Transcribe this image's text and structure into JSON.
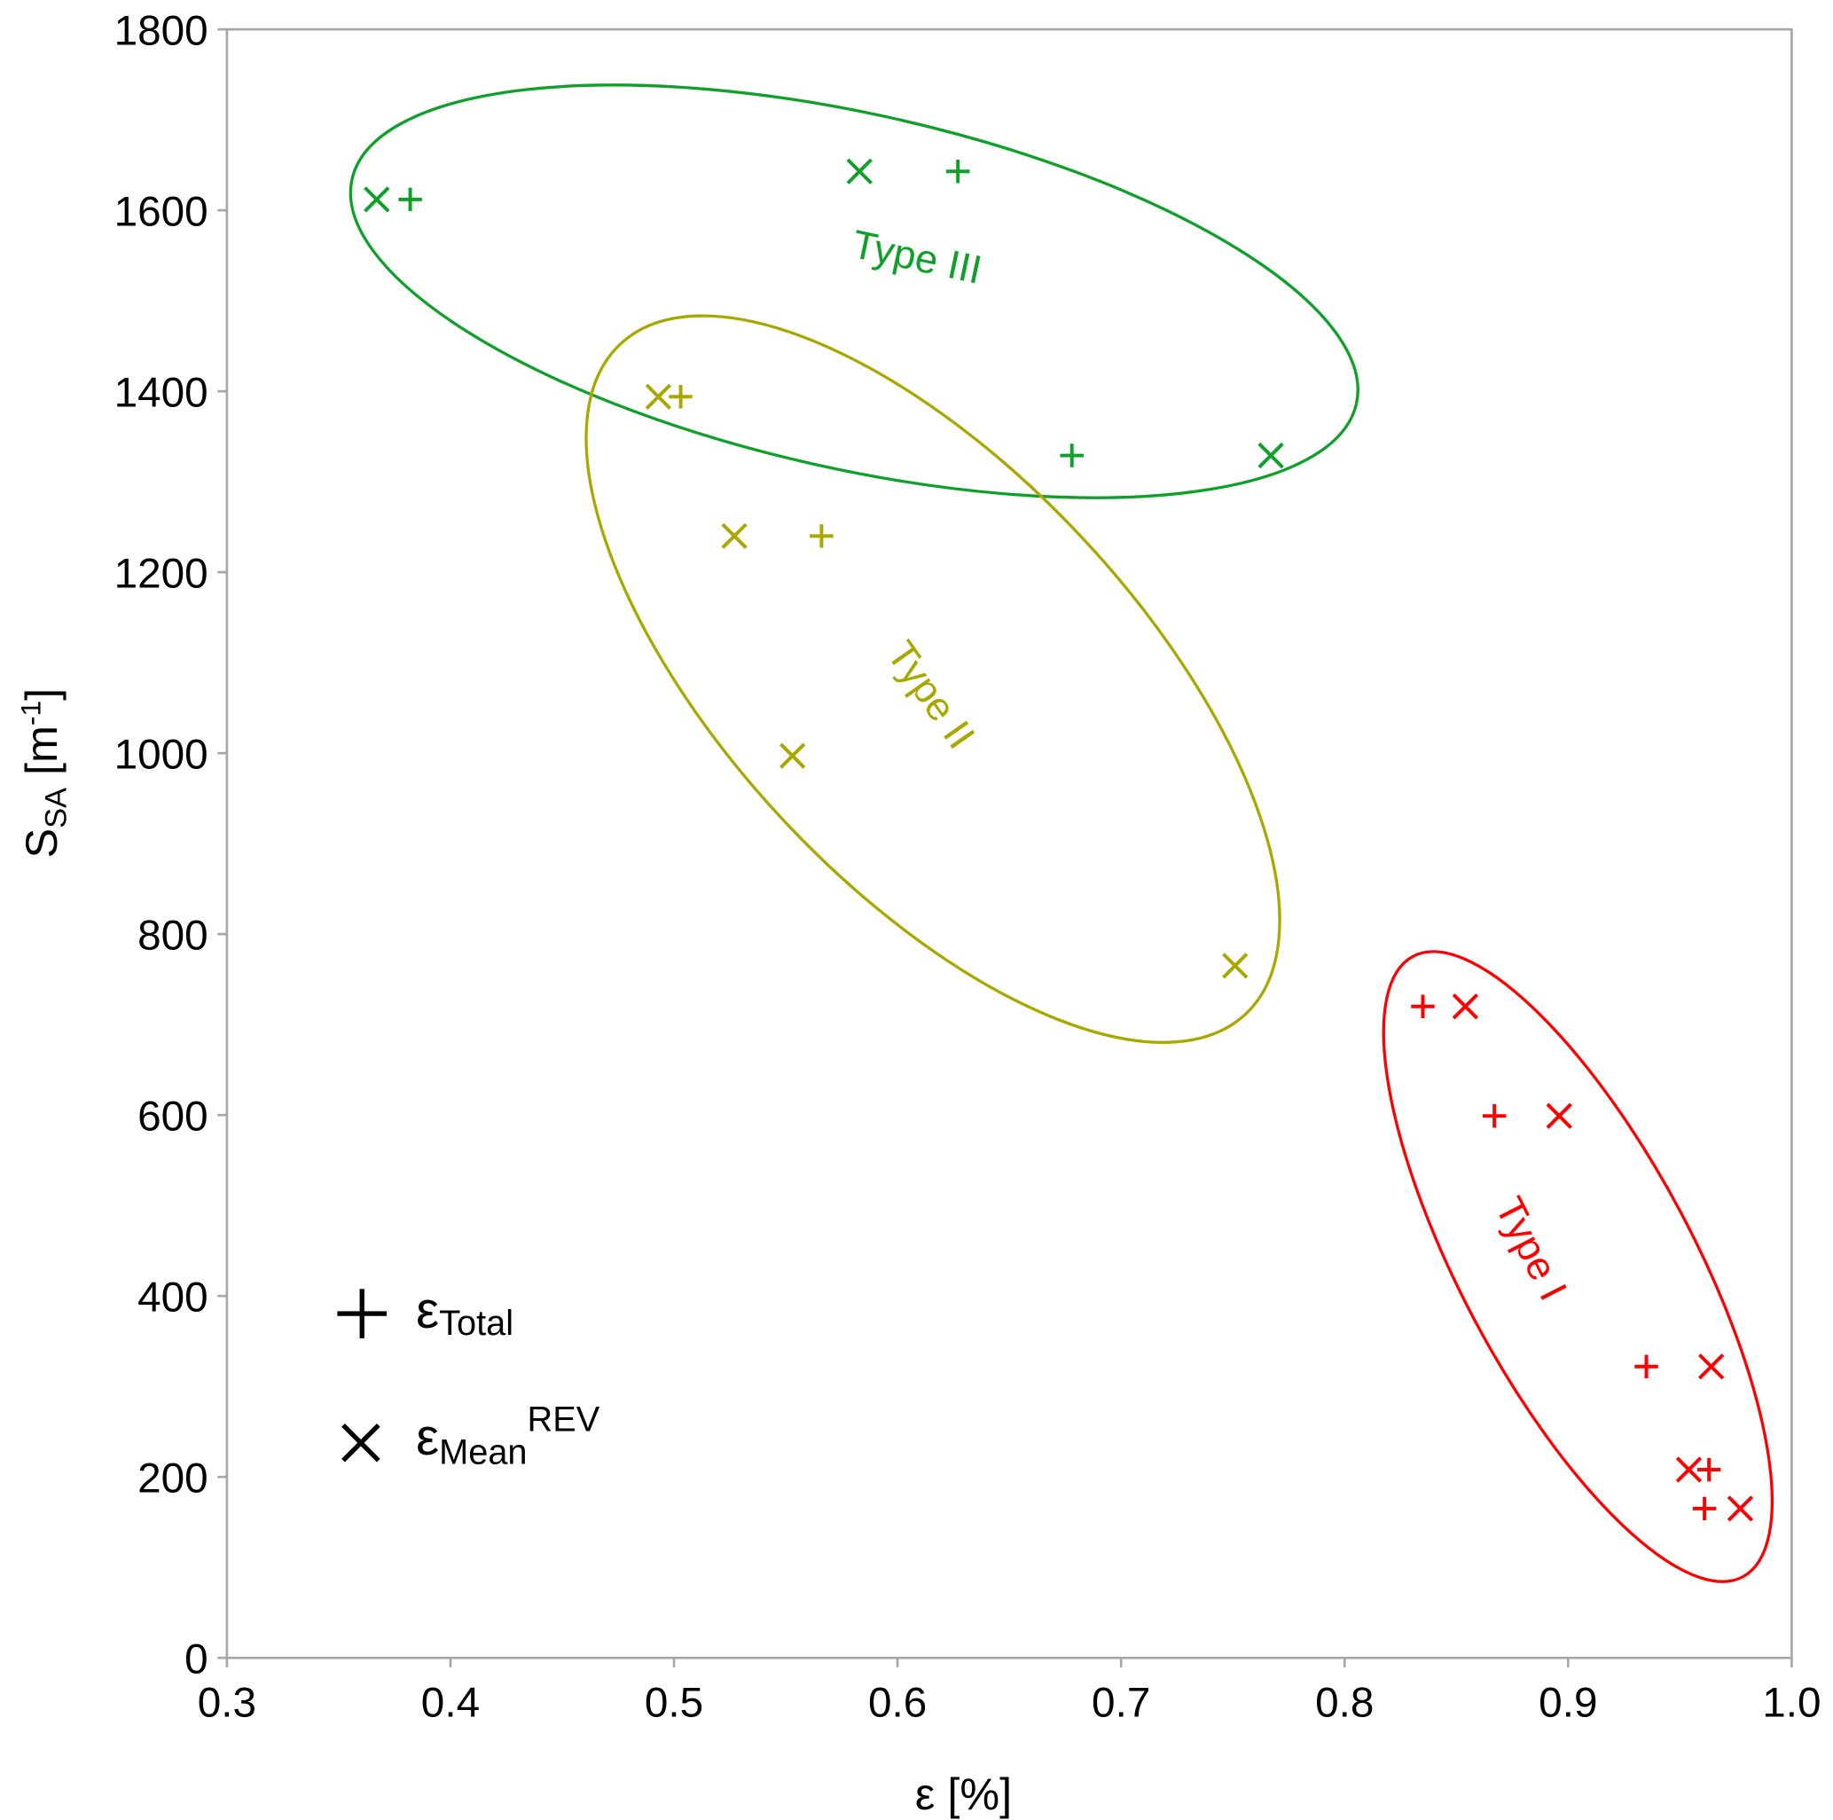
{
  "chart_data": {
    "type": "scatter",
    "title": "",
    "xlabel": {
      "main": "ε [%]"
    },
    "ylabel": {
      "main": "S",
      "sub": "SA",
      "unit_open": " [m",
      "sup": "-1",
      "unit_close": "]"
    },
    "xlim": [
      0.3,
      1.0
    ],
    "ylim": [
      0,
      1800
    ],
    "xticks": [
      "0.3",
      "0.4",
      "0.5",
      "0.6",
      "0.7",
      "0.8",
      "0.9",
      "1.0"
    ],
    "yticks": [
      "0",
      "200",
      "400",
      "600",
      "800",
      "1000",
      "1200",
      "1400",
      "1600",
      "1800"
    ],
    "grid": false,
    "legend": {
      "placement": "bottom-left",
      "entries": [
        {
          "marker": "plus",
          "symbol": "ε",
          "sub": "Total",
          "sup": ""
        },
        {
          "marker": "cross",
          "symbol": "ε",
          "sub": "Mean",
          "sup": "REV"
        }
      ]
    },
    "groups": [
      {
        "name": "Type III",
        "color": "#0fa02a",
        "total": [
          [
            0.382,
            1612
          ],
          [
            0.627,
            1643
          ],
          [
            0.678,
            1329
          ]
        ],
        "mean_rev": [
          [
            0.367,
            1612
          ],
          [
            0.583,
            1643
          ],
          [
            0.767,
            1329
          ]
        ]
      },
      {
        "name": "Type II",
        "color": "#a8a800",
        "total": [
          [
            0.503,
            1394
          ],
          [
            0.566,
            1240
          ]
        ],
        "mean_rev": [
          [
            0.493,
            1394
          ],
          [
            0.527,
            1240
          ],
          [
            0.553,
            997
          ],
          [
            0.751,
            765
          ]
        ]
      },
      {
        "name": "Type I",
        "color": "#ff0000",
        "total": [
          [
            0.835,
            720
          ],
          [
            0.867,
            599
          ],
          [
            0.935,
            322
          ],
          [
            0.963,
            208
          ],
          [
            0.961,
            165
          ]
        ],
        "mean_rev": [
          [
            0.854,
            720
          ],
          [
            0.896,
            599
          ],
          [
            0.964,
            322
          ],
          [
            0.954,
            208
          ],
          [
            0.977,
            165
          ]
        ]
      }
    ]
  }
}
